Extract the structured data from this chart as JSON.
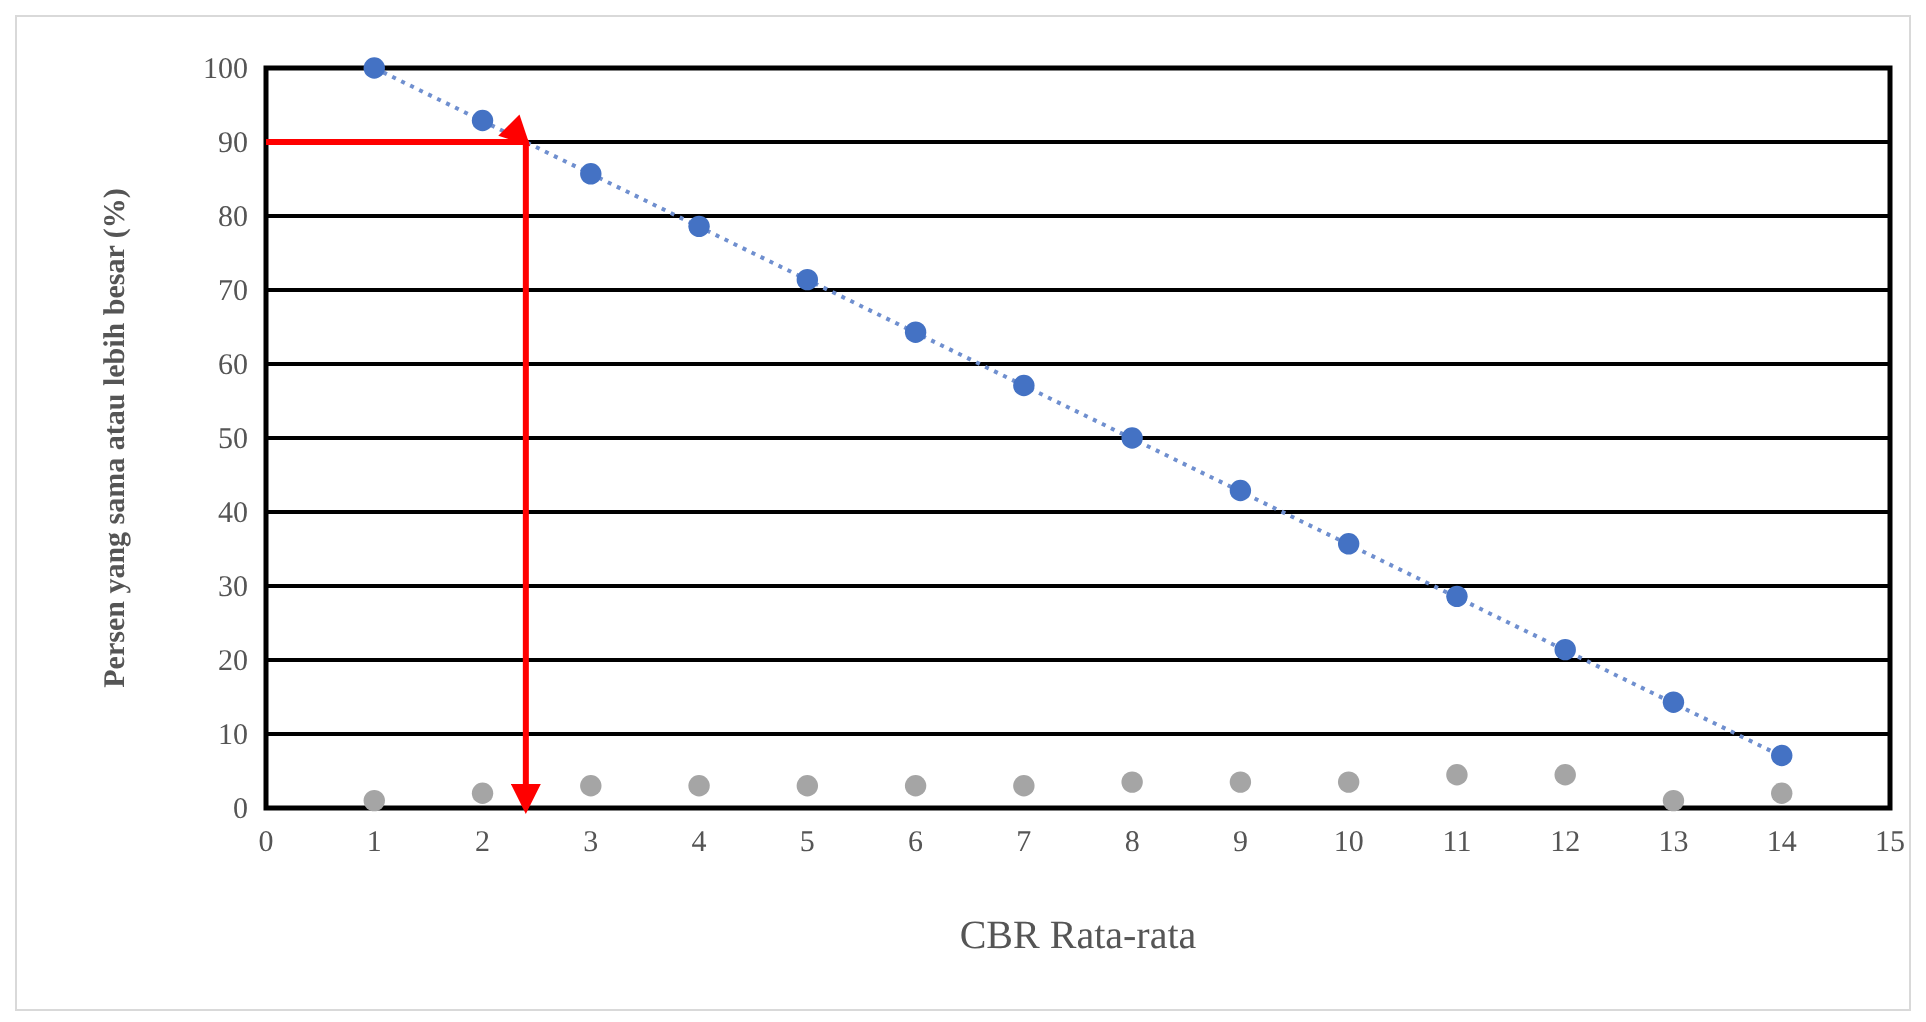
{
  "chart_data": {
    "type": "scatter",
    "xlabel": "CBR Rata-rata",
    "ylabel": "Persen yang sama atau lebih besar (%)",
    "xlim": [
      0,
      15
    ],
    "xticks": [
      0,
      1,
      2,
      3,
      4,
      5,
      6,
      7,
      8,
      9,
      10,
      11,
      12,
      13,
      14,
      15
    ],
    "ylim": [
      0,
      100
    ],
    "yticks": [
      0,
      10,
      20,
      30,
      40,
      50,
      60,
      70,
      80,
      90,
      100
    ],
    "grid": "y",
    "marker": "circle",
    "series": [
      {
        "type": "line",
        "color": "#6f8fcf",
        "line_style": "dotted",
        "marker": "none",
        "x": [
          1,
          14
        ],
        "values": [
          100,
          7
        ]
      },
      {
        "color": "#4472c4",
        "x": [
          1,
          2,
          3,
          4,
          5,
          6,
          7,
          8,
          9,
          10,
          11,
          12,
          13,
          14
        ],
        "values": [
          100,
          92.9,
          85.7,
          78.6,
          71.4,
          64.3,
          57.1,
          50,
          42.9,
          35.7,
          28.6,
          21.4,
          14.3,
          7.1
        ]
      },
      {
        "color": "#a5a5a5",
        "x": [
          1,
          2,
          3,
          4,
          5,
          6,
          7,
          8,
          9,
          10,
          11,
          12,
          13,
          14
        ],
        "values": [
          1,
          2,
          3,
          3,
          3,
          3,
          3,
          3.5,
          3.5,
          3.5,
          4.5,
          4.5,
          1,
          2
        ]
      },
      {
        "type": "line",
        "color": "#ff0000",
        "line_style": "solid",
        "marker": "none",
        "x": [
          0,
          2.4,
          2.4
        ],
        "values": [
          90,
          90,
          0
        ]
      }
    ]
  }
}
